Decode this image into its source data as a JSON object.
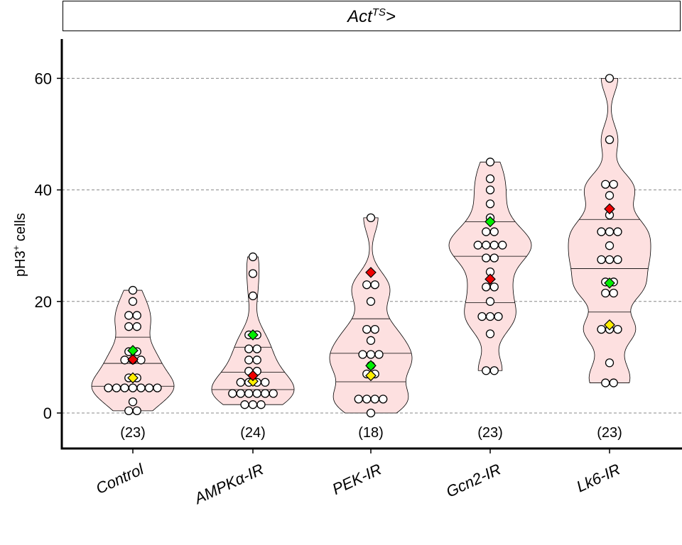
{
  "facet": {
    "prefix": "Act",
    "superscript": "TS",
    "suffix": ">"
  },
  "axis": {
    "ylabel_base": "pH3",
    "ylabel_sup": "+",
    "ylabel_rest": " cells"
  },
  "colors": {
    "violin_fill": "#fde0e0",
    "mean_marker": "#00ee00",
    "red_marker": "#ee0000",
    "yellow_marker": "#ffee00",
    "grid": "#888888"
  },
  "chart_data": {
    "type": "violin",
    "ylim": [
      -6,
      67
    ],
    "yticks": [
      0,
      20,
      40,
      60
    ],
    "grid": "horizontal dashed at y ticks",
    "categories": [
      "Control",
      "AMPKα-IR",
      "PEK-IR",
      "Gcn2-IR",
      "Lk6-IR"
    ],
    "groups": [
      {
        "label": "Control",
        "n_label": "(23)",
        "points": [
          0.4,
          0.4,
          2,
          4.5,
          4.5,
          4.5,
          4.5,
          4.5,
          4.5,
          4.5,
          6.3,
          6.3,
          9.5,
          9.5,
          9.5,
          11,
          11,
          15.5,
          15.5,
          17.5,
          17.5,
          20,
          22
        ],
        "quantiles": [
          4.8,
          8.9,
          13.6
        ],
        "green": 11.2,
        "red": 9.6,
        "yellow": 6.3
      },
      {
        "label": "AMPKα-IR",
        "n_label": "(24)",
        "points": [
          1.5,
          1.5,
          1.5,
          3.5,
          3.5,
          3.5,
          3.5,
          3.5,
          3.5,
          5.5,
          5.5,
          5.5,
          5.5,
          7.5,
          7.5,
          9.5,
          9.5,
          11.5,
          11.5,
          14,
          14,
          21,
          25,
          28
        ],
        "quantiles": [
          4.2,
          7.3,
          11.8
        ],
        "green": 14,
        "red": 6.7,
        "yellow": 5.7
      },
      {
        "label": "PEK-IR",
        "n_label": "(18)",
        "points": [
          0,
          2.5,
          2.5,
          2.5,
          2.5,
          7,
          7,
          8.5,
          10.5,
          10.5,
          10.5,
          13,
          15,
          15,
          20,
          23,
          23,
          35
        ],
        "quantiles": [
          5.6,
          10.7,
          16.9
        ],
        "green": 8.5,
        "red": 25.2,
        "yellow": 6.7
      },
      {
        "label": "Gcn2-IR",
        "n_label": "(23)",
        "points": [
          7.6,
          7.6,
          14.2,
          17.3,
          17.3,
          17.3,
          20,
          22.6,
          22.6,
          25.3,
          27.8,
          27.8,
          30.1,
          30.1,
          30.1,
          30.1,
          32.5,
          32.5,
          35,
          37.5,
          40,
          42,
          45
        ],
        "quantiles": [
          19.8,
          28.1,
          34.3
        ],
        "green": 34.3,
        "red": 24,
        "yellow": null
      },
      {
        "label": "Lk6-IR",
        "n_label": "(23)",
        "points": [
          5.4,
          5.4,
          9,
          15,
          15,
          15,
          21.5,
          21.5,
          23.5,
          23.5,
          27.5,
          27.5,
          27.5,
          30,
          32.5,
          32.5,
          32.5,
          35.5,
          39,
          41,
          41,
          49,
          60
        ],
        "quantiles": [
          18.1,
          25.9,
          34.7
        ],
        "green": 23.3,
        "red": 36.6,
        "yellow": 15.8
      }
    ]
  }
}
